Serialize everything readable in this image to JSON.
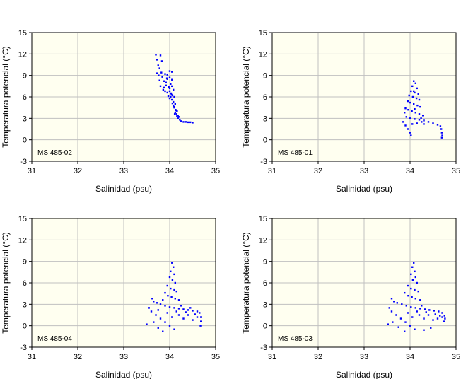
{
  "colors": {
    "plot_bg": "#fffff0",
    "grid": "#c0c0c0",
    "point": "#0000ff",
    "frame": "#000000"
  },
  "chart_data": [
    {
      "type": "scatter",
      "panel": "top-left",
      "label": "MS 485-02",
      "xlabel": "Salinidad (psu)",
      "ylabel": "Temperatura potencial (°C)",
      "xlim": [
        31,
        35
      ],
      "ylim": [
        -3,
        15
      ],
      "xticks": [
        31,
        32,
        33,
        34,
        35
      ],
      "yticks": [
        -3,
        0,
        3,
        6,
        9,
        12,
        15
      ],
      "grid": true,
      "points": [
        [
          33.7,
          11.9
        ],
        [
          33.72,
          11.2
        ],
        [
          33.75,
          10.4
        ],
        [
          33.8,
          11.8
        ],
        [
          33.83,
          11.0
        ],
        [
          33.78,
          10.0
        ],
        [
          33.72,
          9.3
        ],
        [
          33.76,
          9.0
        ],
        [
          33.82,
          9.4
        ],
        [
          33.9,
          9.2
        ],
        [
          33.95,
          9.1
        ],
        [
          34.0,
          9.6
        ],
        [
          34.05,
          9.5
        ],
        [
          33.78,
          8.3
        ],
        [
          33.8,
          7.5
        ],
        [
          33.84,
          8.8
        ],
        [
          33.88,
          8.2
        ],
        [
          33.92,
          8.0
        ],
        [
          33.95,
          8.5
        ],
        [
          34.0,
          8.7
        ],
        [
          34.05,
          8.4
        ],
        [
          33.88,
          7.3
        ],
        [
          33.92,
          7.6
        ],
        [
          33.98,
          7.4
        ],
        [
          34.0,
          7.2
        ],
        [
          34.05,
          7.5
        ],
        [
          34.08,
          7.0
        ],
        [
          33.9,
          6.8
        ],
        [
          33.95,
          6.6
        ],
        [
          34.0,
          6.8
        ],
        [
          34.03,
          6.5
        ],
        [
          34.06,
          6.2
        ],
        [
          34.1,
          6.0
        ],
        [
          34.02,
          6.0
        ],
        [
          34.05,
          5.6
        ],
        [
          34.08,
          5.3
        ],
        [
          34.12,
          5.0
        ],
        [
          34.08,
          4.8
        ],
        [
          34.1,
          4.5
        ],
        [
          34.13,
          4.2
        ],
        [
          34.16,
          4.0
        ],
        [
          34.12,
          3.8
        ],
        [
          34.15,
          3.6
        ],
        [
          34.18,
          3.4
        ],
        [
          34.2,
          3.2
        ],
        [
          34.18,
          3.0
        ],
        [
          34.22,
          2.8
        ],
        [
          34.25,
          2.6
        ],
        [
          34.3,
          2.5
        ],
        [
          34.35,
          2.5
        ],
        [
          34.4,
          2.45
        ],
        [
          34.45,
          2.45
        ],
        [
          34.5,
          2.4
        ],
        [
          34.0,
          5.8
        ],
        [
          34.04,
          6.3
        ],
        [
          33.97,
          6.1
        ],
        [
          34.06,
          5.1
        ],
        [
          34.09,
          4.6
        ],
        [
          34.14,
          4.1
        ],
        [
          34.11,
          3.6
        ],
        [
          34.16,
          3.3
        ],
        [
          33.86,
          7.0
        ],
        [
          34.02,
          7.8
        ],
        [
          33.94,
          8.6
        ]
      ]
    },
    {
      "type": "scatter",
      "panel": "top-right",
      "label": "MS 485-01",
      "xlabel": "Salinidad (psu)",
      "ylabel": "Temperatura potencial (°C)",
      "xlim": [
        31,
        35
      ],
      "ylim": [
        -3,
        15
      ],
      "xticks": [
        31,
        32,
        33,
        34,
        35
      ],
      "yticks": [
        -3,
        0,
        3,
        6,
        9,
        12,
        15
      ],
      "grid": true,
      "points": [
        [
          34.08,
          8.2
        ],
        [
          34.12,
          7.9
        ],
        [
          34.05,
          7.5
        ],
        [
          34.15,
          7.2
        ],
        [
          34.02,
          6.8
        ],
        [
          34.1,
          6.6
        ],
        [
          34.18,
          6.4
        ],
        [
          33.98,
          6.2
        ],
        [
          34.06,
          6.0
        ],
        [
          34.14,
          5.8
        ],
        [
          34.2,
          5.6
        ],
        [
          33.95,
          5.4
        ],
        [
          34.0,
          5.2
        ],
        [
          34.08,
          5.0
        ],
        [
          34.16,
          4.8
        ],
        [
          34.22,
          4.6
        ],
        [
          33.9,
          4.4
        ],
        [
          33.96,
          4.2
        ],
        [
          34.04,
          4.0
        ],
        [
          34.12,
          3.8
        ],
        [
          34.2,
          3.6
        ],
        [
          34.28,
          3.4
        ],
        [
          33.92,
          3.2
        ],
        [
          34.0,
          3.0
        ],
        [
          34.1,
          2.9
        ],
        [
          34.2,
          2.8
        ],
        [
          34.3,
          2.7
        ],
        [
          34.4,
          2.5
        ],
        [
          34.5,
          2.3
        ],
        [
          34.6,
          2.1
        ],
        [
          34.66,
          1.9
        ],
        [
          34.68,
          1.5
        ],
        [
          34.69,
          1.0
        ],
        [
          34.7,
          0.6
        ],
        [
          34.69,
          0.3
        ],
        [
          33.85,
          2.5
        ],
        [
          33.9,
          2.0
        ],
        [
          33.95,
          1.5
        ],
        [
          34.0,
          1.0
        ],
        [
          34.02,
          0.6
        ],
        [
          34.05,
          2.2
        ],
        [
          34.15,
          2.3
        ],
        [
          34.25,
          2.5
        ],
        [
          33.88,
          3.8
        ],
        [
          34.24,
          3.0
        ],
        [
          34.08,
          6.8
        ],
        [
          34.1,
          4.3
        ],
        [
          34.3,
          2.2
        ]
      ]
    },
    {
      "type": "scatter",
      "panel": "bottom-left",
      "label": "MS 485-04",
      "xlabel": "Salinidad (psu)",
      "ylabel": "Temperatura potencial (°C)",
      "xlim": [
        31,
        35
      ],
      "ylim": [
        -3,
        15
      ],
      "xticks": [
        31,
        32,
        33,
        34,
        35
      ],
      "yticks": [
        -3,
        0,
        3,
        6,
        9,
        12,
        15
      ],
      "grid": true,
      "points": [
        [
          34.05,
          8.8
        ],
        [
          34.08,
          8.2
        ],
        [
          34.02,
          7.6
        ],
        [
          34.1,
          7.2
        ],
        [
          34.0,
          6.8
        ],
        [
          34.06,
          6.4
        ],
        [
          34.12,
          6.0
        ],
        [
          33.95,
          5.6
        ],
        [
          34.02,
          5.2
        ],
        [
          34.1,
          5.0
        ],
        [
          34.15,
          4.8
        ],
        [
          33.9,
          4.6
        ],
        [
          33.96,
          4.2
        ],
        [
          34.04,
          4.0
        ],
        [
          34.12,
          3.8
        ],
        [
          34.2,
          3.6
        ],
        [
          33.65,
          3.4
        ],
        [
          33.72,
          3.2
        ],
        [
          33.8,
          3.0
        ],
        [
          33.9,
          2.8
        ],
        [
          34.0,
          2.6
        ],
        [
          34.1,
          2.5
        ],
        [
          34.2,
          2.4
        ],
        [
          34.3,
          2.3
        ],
        [
          34.4,
          2.2
        ],
        [
          34.5,
          2.1
        ],
        [
          34.6,
          2.0
        ],
        [
          34.65,
          1.8
        ],
        [
          34.68,
          1.2
        ],
        [
          34.68,
          0.6
        ],
        [
          34.67,
          0.0
        ],
        [
          33.6,
          2.0
        ],
        [
          33.7,
          1.5
        ],
        [
          33.8,
          1.0
        ],
        [
          33.9,
          0.5
        ],
        [
          34.0,
          0.0
        ],
        [
          34.1,
          -0.5
        ],
        [
          33.85,
          -0.8
        ],
        [
          33.75,
          -0.3
        ],
        [
          33.65,
          0.5
        ],
        [
          33.55,
          2.5
        ],
        [
          33.62,
          3.8
        ],
        [
          33.5,
          0.2
        ],
        [
          34.2,
          1.5
        ],
        [
          34.3,
          1.0
        ],
        [
          34.4,
          1.5
        ],
        [
          34.5,
          0.8
        ],
        [
          34.15,
          2.0
        ],
        [
          33.95,
          1.8
        ],
        [
          34.05,
          1.2
        ],
        [
          34.25,
          2.8
        ],
        [
          34.35,
          1.9
        ],
        [
          34.45,
          2.5
        ],
        [
          34.55,
          1.6
        ],
        [
          33.75,
          2.2
        ],
        [
          33.85,
          3.6
        ],
        [
          34.6,
          1.2
        ]
      ]
    },
    {
      "type": "scatter",
      "panel": "bottom-right",
      "label": "MS 485-03",
      "xlabel": "Salinidad (psu)",
      "ylabel": "Temperatura potencial (°C)",
      "xlim": [
        31,
        35
      ],
      "ylim": [
        -3,
        15
      ],
      "xticks": [
        31,
        32,
        33,
        34,
        35
      ],
      "yticks": [
        -3,
        0,
        3,
        6,
        9,
        12,
        15
      ],
      "grid": true,
      "points": [
        [
          34.08,
          8.8
        ],
        [
          34.05,
          8.2
        ],
        [
          34.1,
          7.6
        ],
        [
          34.02,
          7.2
        ],
        [
          34.12,
          6.8
        ],
        [
          34.06,
          6.4
        ],
        [
          34.15,
          6.0
        ],
        [
          33.95,
          5.6
        ],
        [
          34.02,
          5.2
        ],
        [
          34.1,
          5.0
        ],
        [
          34.18,
          4.8
        ],
        [
          33.88,
          4.6
        ],
        [
          33.96,
          4.2
        ],
        [
          34.04,
          4.0
        ],
        [
          34.12,
          3.8
        ],
        [
          34.22,
          3.6
        ],
        [
          33.65,
          3.4
        ],
        [
          33.72,
          3.2
        ],
        [
          33.82,
          3.0
        ],
        [
          33.92,
          2.8
        ],
        [
          34.02,
          2.6
        ],
        [
          34.12,
          2.5
        ],
        [
          34.22,
          2.4
        ],
        [
          34.32,
          2.3
        ],
        [
          34.42,
          2.2
        ],
        [
          34.52,
          2.1
        ],
        [
          34.62,
          2.0
        ],
        [
          34.7,
          1.8
        ],
        [
          34.75,
          1.4
        ],
        [
          34.76,
          1.0
        ],
        [
          34.74,
          0.6
        ],
        [
          33.6,
          2.0
        ],
        [
          33.7,
          1.5
        ],
        [
          33.8,
          1.0
        ],
        [
          33.9,
          0.5
        ],
        [
          34.0,
          0.0
        ],
        [
          34.1,
          -0.5
        ],
        [
          33.88,
          -0.8
        ],
        [
          33.75,
          -0.2
        ],
        [
          33.62,
          0.5
        ],
        [
          33.55,
          2.5
        ],
        [
          33.6,
          3.8
        ],
        [
          33.52,
          0.2
        ],
        [
          34.2,
          1.5
        ],
        [
          34.3,
          1.0
        ],
        [
          34.4,
          1.5
        ],
        [
          34.5,
          0.8
        ],
        [
          34.6,
          1.0
        ],
        [
          34.7,
          1.2
        ],
        [
          34.3,
          -0.6
        ],
        [
          34.45,
          -0.3
        ],
        [
          34.15,
          2.0
        ],
        [
          33.95,
          1.8
        ],
        [
          34.05,
          1.2
        ],
        [
          34.25,
          2.8
        ],
        [
          34.35,
          1.9
        ],
        [
          34.55,
          1.6
        ],
        [
          34.65,
          1.4
        ]
      ]
    }
  ]
}
